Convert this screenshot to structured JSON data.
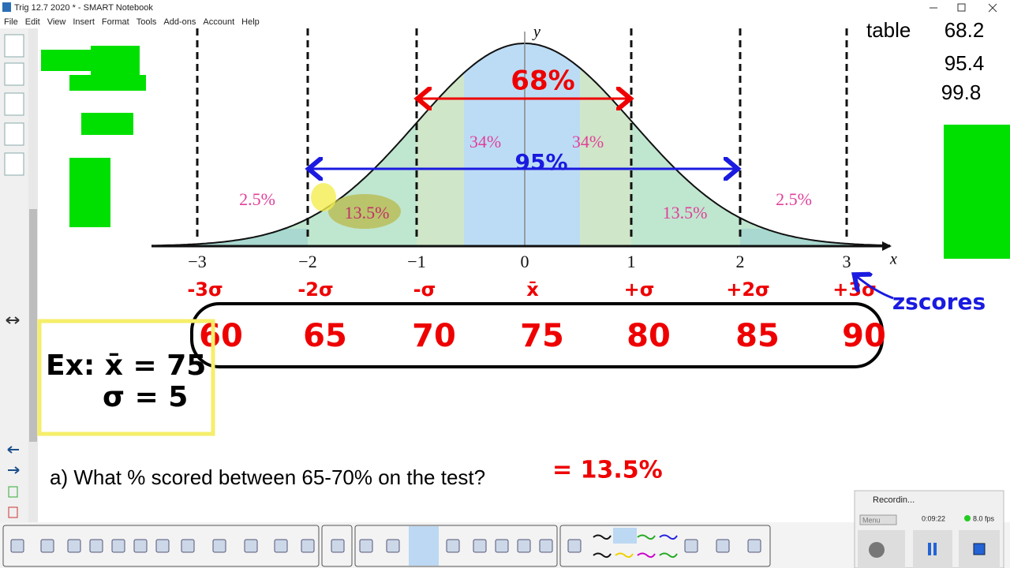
{
  "window": {
    "title": "Trig 12.7 2020 * - SMART Notebook"
  },
  "menu": [
    "File",
    "Edit",
    "View",
    "Insert",
    "Format",
    "Tools",
    "Add-ons",
    "Account",
    "Help"
  ],
  "curve": {
    "z_labels": [
      "−3",
      "−2",
      "−1",
      "0",
      "1",
      "2",
      "3"
    ],
    "axis_x": "x",
    "axis_y": "y",
    "region_labels": [
      "2.5%",
      "13.5%",
      "34%",
      "34%",
      "13.5%",
      "2.5%"
    ]
  },
  "handwriting": {
    "span_68": "68%",
    "span_95": "95%",
    "sigma_labels": [
      "-3σ",
      "-2σ",
      "-σ",
      "x̄",
      "+σ",
      "+2σ",
      "+3σ"
    ],
    "scores": [
      "60",
      "65",
      "70",
      "75",
      "80",
      "85",
      "90"
    ],
    "zscores": "zscores",
    "example_mean": "Ex: x̄ = 75",
    "example_sd": "σ = 5"
  },
  "table": {
    "label": "table",
    "values": [
      "68.2",
      "95.4",
      "99.8"
    ]
  },
  "question": "a) What % scored between 65-70% on the test?",
  "answer": "= 13.5%",
  "recorder": {
    "title": "Recordin...",
    "menu": "Menu",
    "time": "0:09:22",
    "fps": "8.0 fps"
  }
}
